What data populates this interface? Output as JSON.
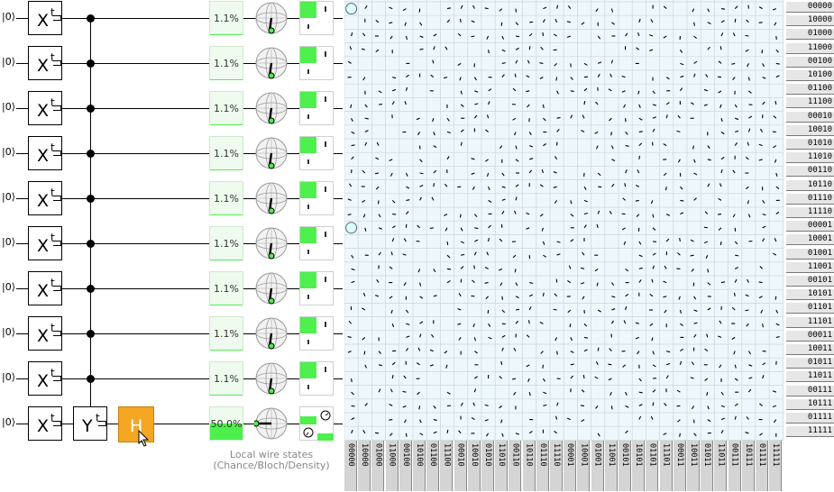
{
  "qubits": [
    {
      "ket": "|0⟩",
      "gate": "X",
      "gate_sup": "t",
      "chance": "1.1%"
    },
    {
      "ket": "|0⟩",
      "gate": "X",
      "gate_sup": "t",
      "chance": "1.1%"
    },
    {
      "ket": "|0⟩",
      "gate": "X",
      "gate_sup": "t",
      "chance": "1.1%"
    },
    {
      "ket": "|0⟩",
      "gate": "X",
      "gate_sup": "t",
      "chance": "1.1%"
    },
    {
      "ket": "|0⟩",
      "gate": "X",
      "gate_sup": "t",
      "chance": "1.1%"
    },
    {
      "ket": "|0⟩",
      "gate": "X",
      "gate_sup": "t",
      "chance": "1.1%"
    },
    {
      "ket": "|0⟩",
      "gate": "X",
      "gate_sup": "t",
      "chance": "1.1%"
    },
    {
      "ket": "|0⟩",
      "gate": "X",
      "gate_sup": "t",
      "chance": "1.1%"
    },
    {
      "ket": "|0⟩",
      "gate": "X",
      "gate_sup": "t",
      "chance": "1.1%"
    },
    {
      "ket": "|0⟩",
      "gate": "X",
      "gate_sup": "t",
      "chance": "50.0%"
    }
  ],
  "chance_fraction": [
    0.011,
    0.011,
    0.011,
    0.011,
    0.011,
    0.011,
    0.011,
    0.011,
    0.011,
    0.5
  ],
  "controlled_gate": {
    "label": "Y",
    "sup": "t"
  },
  "h_gate": {
    "label": "H"
  },
  "caption": {
    "line1": "Local wire states",
    "line2": "(Chance/Bloch/Density)"
  },
  "row_labels": [
    "00000",
    "10000",
    "01000",
    "11000",
    "00100",
    "10100",
    "01100",
    "11100",
    "00010",
    "10010",
    "01010",
    "11010",
    "00110",
    "10110",
    "01110",
    "11110",
    "00001",
    "10001",
    "01001",
    "11001",
    "00101",
    "10101",
    "01101",
    "11101",
    "00011",
    "10011",
    "01011",
    "11011",
    "00111",
    "10111",
    "01111",
    "11111"
  ],
  "col_labels": [
    "00000",
    "10000",
    "01000",
    "11000",
    "00100",
    "10100",
    "01100",
    "11100",
    "00010",
    "10010",
    "01010",
    "11010",
    "00110",
    "10110",
    "01110",
    "11110",
    "00001",
    "10001",
    "01001",
    "11001",
    "00101",
    "10101",
    "01101",
    "11101",
    "00011",
    "10011",
    "01011",
    "11011",
    "00111",
    "10111",
    "01111",
    "11111"
  ],
  "colors": {
    "green": "#4df04d",
    "pale_green": "#eefbee",
    "orange": "#f5a623",
    "matrix_bg": "#eef8fc"
  }
}
